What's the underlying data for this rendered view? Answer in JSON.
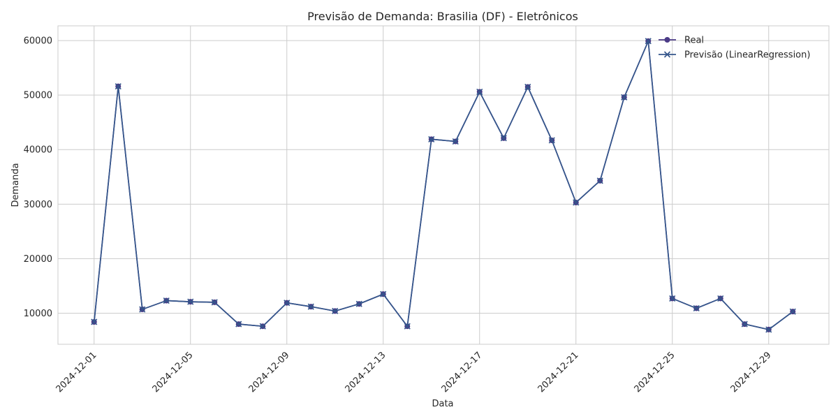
{
  "chart_data": {
    "type": "line",
    "title": "Previsão de Demanda: Brasilia (DF) - Eletrônicos",
    "xlabel": "Data",
    "ylabel": "Demanda",
    "x": [
      "2024-12-01",
      "2024-12-02",
      "2024-12-03",
      "2024-12-04",
      "2024-12-05",
      "2024-12-06",
      "2024-12-07",
      "2024-12-08",
      "2024-12-09",
      "2024-12-10",
      "2024-12-11",
      "2024-12-12",
      "2024-12-13",
      "2024-12-14",
      "2024-12-15",
      "2024-12-16",
      "2024-12-17",
      "2024-12-18",
      "2024-12-19",
      "2024-12-20",
      "2024-12-21",
      "2024-12-22",
      "2024-12-23",
      "2024-12-24",
      "2024-12-25",
      "2024-12-26",
      "2024-12-27",
      "2024-12-28",
      "2024-12-29",
      "2024-12-30"
    ],
    "x_ticks": [
      "2024-12-01",
      "2024-12-05",
      "2024-12-09",
      "2024-12-13",
      "2024-12-17",
      "2024-12-21",
      "2024-12-25",
      "2024-12-29"
    ],
    "y_ticks": [
      10000,
      20000,
      30000,
      40000,
      50000,
      60000
    ],
    "ylim": [
      4300,
      62700
    ],
    "xlim": [
      "2024-11-29 12:00",
      "2024-12-31 12:00"
    ],
    "grid": true,
    "legend_position": "top-right",
    "series": [
      {
        "name": "Real",
        "marker": "circle",
        "color": "#4b3b87",
        "values": [
          8400,
          51600,
          10700,
          12300,
          12100,
          12000,
          8000,
          7600,
          11900,
          11200,
          10400,
          11700,
          13500,
          7600,
          41900,
          41500,
          50600,
          42100,
          51500,
          41700,
          30300,
          34300,
          49600,
          59900,
          12700,
          10900,
          12700,
          8000,
          7000,
          10300
        ]
      },
      {
        "name": "Previsão (LinearRegression)",
        "marker": "x",
        "color": "#34568b",
        "values": [
          8400,
          51600,
          10700,
          12300,
          12100,
          12000,
          8000,
          7600,
          11900,
          11200,
          10400,
          11700,
          13500,
          7600,
          41900,
          41500,
          50600,
          42100,
          51500,
          41700,
          30300,
          34300,
          49600,
          59900,
          12700,
          10900,
          12700,
          8000,
          7000,
          10300
        ]
      }
    ]
  }
}
